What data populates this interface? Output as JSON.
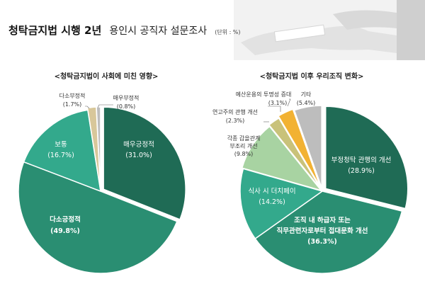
{
  "header": {
    "title_bold": "청탁금지법 시행 2년",
    "title_rest": "용인시 공직자 설문조사",
    "unit": "(단위 : %)"
  },
  "colors": {
    "dark_green": "#1f6b55",
    "mid_green": "#2a8e72",
    "teal": "#33a98c",
    "light_green": "#a8d3a2",
    "olive": "#c9c27a",
    "orange": "#f2b233",
    "gray": "#bdbdbd",
    "tan": "#d8c79a"
  },
  "chart_data": [
    {
      "type": "pie",
      "title": "<청탁금지법이 사회에 미친 영향>",
      "slices": [
        {
          "label": "매우긍정적",
          "value": 31.0,
          "display": "(31.0%)",
          "color": "#1f6b55"
        },
        {
          "label": "다소긍정적",
          "value": 49.8,
          "display": "(49.8%)",
          "color": "#2a8e72"
        },
        {
          "label": "보통",
          "value": 16.7,
          "display": "(16.7%)",
          "color": "#33a98c"
        },
        {
          "label": "다소부정적",
          "value": 1.7,
          "display": "(1.7%)",
          "color": "#d8c79a"
        },
        {
          "label": "매우부정적",
          "value": 0.8,
          "display": "(0.8%)",
          "color": "#bdbdbd"
        }
      ]
    },
    {
      "type": "pie",
      "title": "<청탁금지법 이후 우리조직 변화>",
      "slices": [
        {
          "label": "부정청탁 관행의 개선",
          "value": 28.9,
          "display": "(28.9%)",
          "color": "#1f6b55"
        },
        {
          "label": "조직 내 하급자 또는 직무관련자로부터 접대문화 개선",
          "lines": [
            "조직 내 하급자 또는",
            "직무관련자로부터 접대문화 개선"
          ],
          "value": 36.3,
          "display": "(36.3%)",
          "color": "#2a8e72"
        },
        {
          "label": "식사 시 더치페이",
          "value": 14.2,
          "display": "(14.2%)",
          "color": "#33a98c"
        },
        {
          "label": "각종 갑을관계 부조리 개선",
          "lines": [
            "각종 갑을관계",
            "부조리 개선"
          ],
          "value": 9.8,
          "display": "(9.8%)",
          "color": "#a8d3a2"
        },
        {
          "label": "연고주의 관행 개선",
          "value": 2.3,
          "display": "(2.3%)",
          "color": "#c9c27a"
        },
        {
          "label": "예산운용의 투명성 증대",
          "value": 3.1,
          "display": "(3.1%)",
          "color": "#f2b233"
        },
        {
          "label": "기타",
          "value": 5.4,
          "display": "(5.4%)",
          "color": "#bdbdbd"
        }
      ]
    }
  ]
}
